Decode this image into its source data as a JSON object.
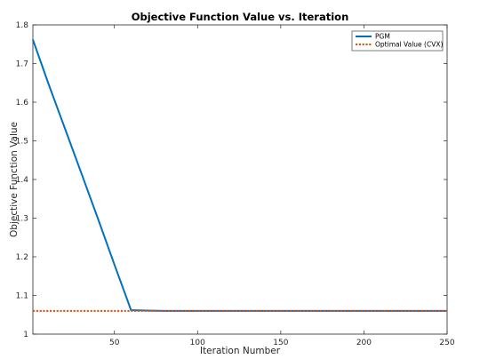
{
  "chart_data": {
    "type": "line",
    "title": "Objective Function Value vs. Iteration",
    "xlabel": "Iteration Number",
    "ylabel": "Objective Function Value",
    "xlim": [
      1,
      250
    ],
    "ylim": [
      1,
      1.8
    ],
    "xticks": [
      50,
      100,
      150,
      200,
      250
    ],
    "yticks": [
      1,
      1.1,
      1.2,
      1.3,
      1.4,
      1.5,
      1.6,
      1.7,
      1.8
    ],
    "grid": false,
    "legend_position": "top-right",
    "series": [
      {
        "name": "PGM",
        "color": "#0072BD",
        "style": "solid",
        "x": [
          1,
          10,
          20,
          30,
          40,
          50,
          60,
          70,
          80,
          100,
          150,
          200,
          250
        ],
        "y": [
          1.762,
          1.652,
          1.535,
          1.418,
          1.3,
          1.18,
          1.062,
          1.061,
          1.06,
          1.06,
          1.06,
          1.06,
          1.06
        ]
      },
      {
        "name": "Optimal Value (CVX)",
        "color": "#D95319",
        "style": "dotted",
        "x": [
          1,
          250
        ],
        "y": [
          1.06,
          1.06
        ]
      }
    ]
  }
}
